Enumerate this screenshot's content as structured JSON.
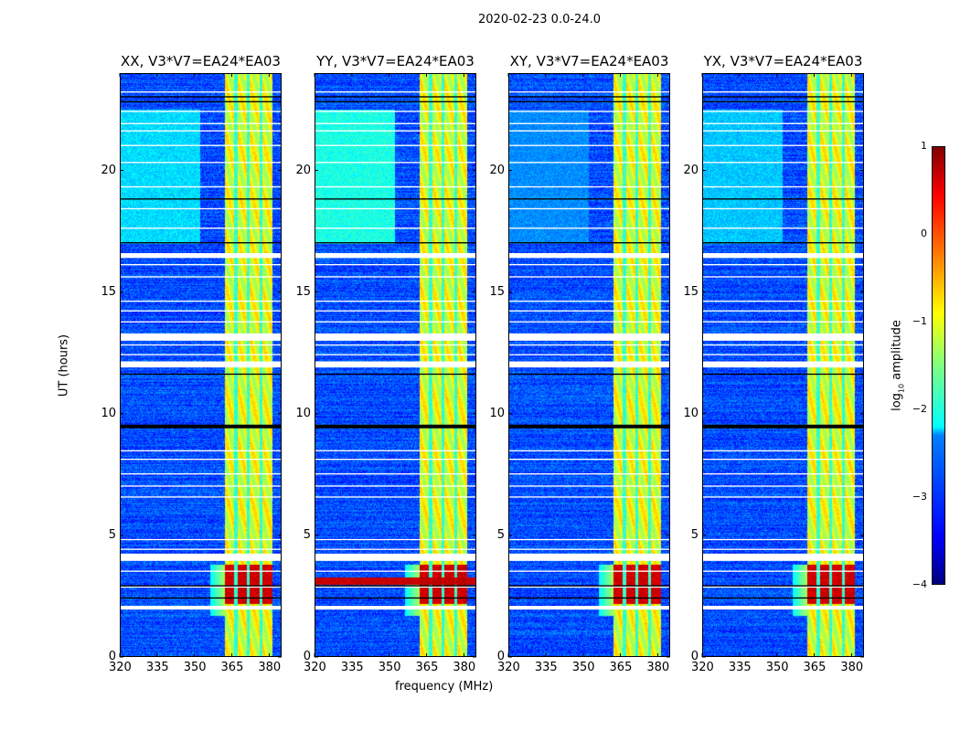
{
  "chart_data": {
    "type": "heatmap",
    "title": "2020-02-23 0.0-24.0",
    "xlabel": "frequency (MHz)",
    "ylabel": "UT (hours)",
    "xlim": [
      320,
      385
    ],
    "ylim": [
      0,
      24
    ],
    "xticks": [
      "320",
      "335",
      "350",
      "365",
      "380"
    ],
    "xtick_values": [
      320,
      335,
      350,
      365,
      380
    ],
    "yticks": [
      "0",
      "5",
      "10",
      "15",
      "20"
    ],
    "ytick_values": [
      0,
      5,
      10,
      15,
      20
    ],
    "colormap": "jet",
    "colorbar": {
      "label_main": "log",
      "label_sub": "10",
      "label_rest": " amplitude",
      "range": [
        -4,
        1
      ],
      "ticks": [
        "1",
        "0",
        "−1",
        "−2",
        "−3",
        "−4"
      ],
      "tick_values": [
        1,
        0,
        -1,
        -2,
        -3,
        -4
      ]
    },
    "background_level": -3,
    "rfi_band_mhz": [
      362,
      381
    ],
    "rfi_band_gaps_mhz": [
      366.5,
      371.5,
      376.5
    ],
    "strong_rfi_ut": [
      2.2,
      3.8
    ],
    "flagged_ut_white": [
      [
        1.95,
        2.1
      ],
      [
        2.85,
        2.9
      ],
      [
        3.5,
        3.55
      ],
      [
        3.95,
        4.25
      ],
      [
        4.4,
        4.45
      ],
      [
        4.8,
        4.85
      ],
      [
        6.55,
        6.6
      ],
      [
        7.0,
        7.05
      ],
      [
        7.5,
        7.55
      ],
      [
        8.1,
        8.15
      ],
      [
        8.45,
        8.5
      ],
      [
        11.9,
        12.15
      ],
      [
        12.4,
        12.45
      ],
      [
        12.8,
        12.85
      ],
      [
        13.0,
        13.3
      ],
      [
        13.75,
        13.8
      ],
      [
        14.2,
        14.25
      ],
      [
        14.6,
        14.65
      ],
      [
        15.6,
        15.65
      ],
      [
        16.1,
        16.15
      ],
      [
        16.4,
        16.6
      ],
      [
        17.6,
        17.65
      ],
      [
        18.4,
        18.45
      ],
      [
        19.3,
        19.35
      ],
      [
        20.3,
        20.35
      ],
      [
        21.0,
        21.05
      ],
      [
        21.6,
        21.65
      ],
      [
        21.9,
        21.95
      ],
      [
        22.4,
        22.45
      ],
      [
        23.2,
        23.25
      ]
    ],
    "flagged_ut_black": [
      [
        2.4,
        2.45
      ],
      [
        2.9,
        2.95
      ],
      [
        9.4,
        9.55
      ],
      [
        11.6,
        11.65
      ],
      [
        17.0,
        17.05
      ],
      [
        18.8,
        18.85
      ],
      [
        22.8,
        22.85
      ],
      [
        23.0,
        23.05
      ]
    ],
    "panels": [
      {
        "title": "XX, V3*V7=EA24*EA03",
        "strong_broadband_ut": null,
        "low_freq_hump": -2.3
      },
      {
        "title": "YY, V3*V7=EA24*EA03",
        "strong_broadband_ut": [
          3.0,
          3.3
        ],
        "low_freq_hump": -2.0
      },
      {
        "title": "XY, V3*V7=EA24*EA03",
        "strong_broadband_ut": null,
        "low_freq_hump": -2.7
      },
      {
        "title": "YX, V3*V7=EA24*EA03",
        "strong_broadband_ut": null,
        "low_freq_hump": -2.4
      }
    ]
  }
}
